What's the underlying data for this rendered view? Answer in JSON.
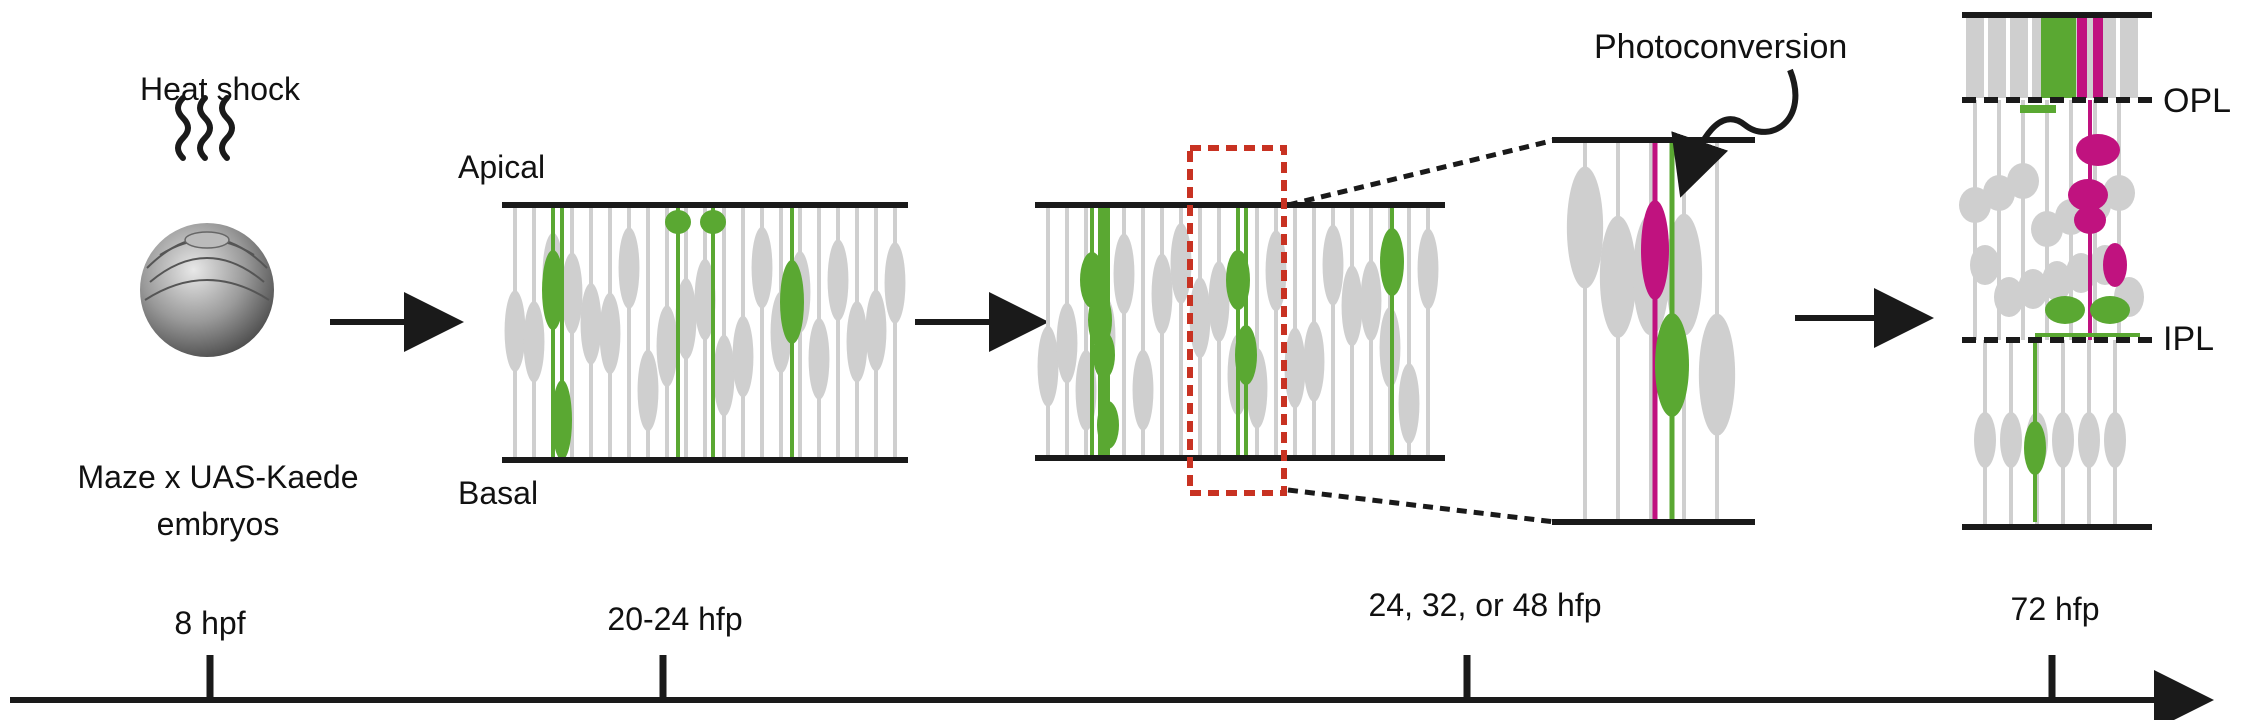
{
  "stage1": {
    "heat_label": "Heat shock",
    "embryo_line1": "Maze x UAS-Kaede",
    "embryo_line2": "embryos"
  },
  "stage2": {
    "apical_label": "Apical",
    "basal_label": "Basal"
  },
  "stage4": {
    "photoconversion_label": "Photoconversion"
  },
  "stage5": {
    "opl_label": "OPL",
    "ipl_label": "IPL"
  },
  "timeline": {
    "ticks": [
      "8 hpf",
      "20-24 hfp",
      "24, 32, or 48 hfp",
      "72 hfp"
    ]
  },
  "colors": {
    "green": "#5aa832",
    "magenta": "#c0127f",
    "grey": "#cfcfcf",
    "dashed_box": "#c83222",
    "line": "#1a1a1a"
  }
}
